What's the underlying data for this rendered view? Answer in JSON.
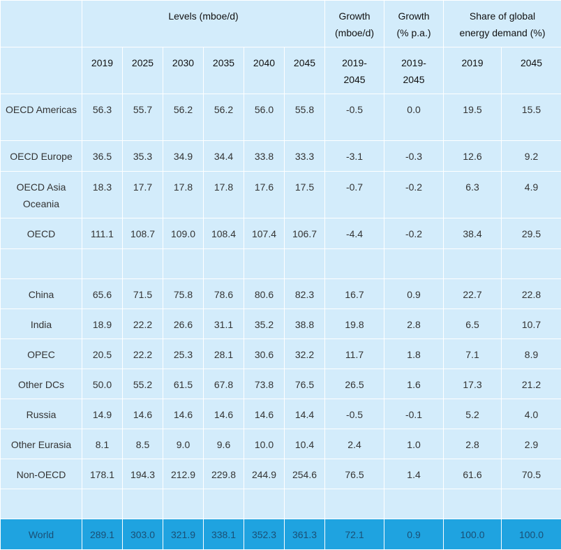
{
  "header": {
    "group_levels": "Levels (mboe/d)",
    "group_growth_abs": "Growth (mboe/d)",
    "group_growth_pct": "Growth (% p.a.)",
    "group_share": "Share of global energy demand (%)",
    "years": [
      "2019",
      "2025",
      "2030",
      "2035",
      "2040",
      "2045"
    ],
    "growth_abs_period": "2019-2045",
    "growth_pct_period": "2019-2045",
    "share_years": [
      "2019",
      "2045"
    ]
  },
  "rows": [
    {
      "region": "OECD Americas",
      "values": [
        "56.3",
        "55.7",
        "56.2",
        "56.2",
        "56.0",
        "55.8",
        "-0.5",
        "0.0",
        "19.5",
        "15.5"
      ]
    },
    {
      "region": "OECD Europe",
      "values": [
        "36.5",
        "35.3",
        "34.9",
        "34.4",
        "33.8",
        "33.3",
        "-3.1",
        "-0.3",
        "12.6",
        "9.2"
      ]
    },
    {
      "region": "OECD Asia Oceania",
      "values": [
        "18.3",
        "17.7",
        "17.8",
        "17.8",
        "17.6",
        "17.5",
        "-0.7",
        "-0.2",
        "6.3",
        "4.9"
      ]
    },
    {
      "region": "OECD",
      "values": [
        "111.1",
        "108.7",
        "109.0",
        "108.4",
        "107.4",
        "106.7",
        "-4.4",
        "-0.2",
        "38.4",
        "29.5"
      ]
    },
    {
      "region": "",
      "values": [
        "",
        "",
        "",
        "",
        "",
        "",
        "",
        "",
        "",
        ""
      ]
    },
    {
      "region": "China",
      "values": [
        "65.6",
        "71.5",
        "75.8",
        "78.6",
        "80.6",
        "82.3",
        "16.7",
        "0.9",
        "22.7",
        "22.8"
      ]
    },
    {
      "region": "India",
      "values": [
        "18.9",
        "22.2",
        "26.6",
        "31.1",
        "35.2",
        "38.8",
        "19.8",
        "2.8",
        "6.5",
        "10.7"
      ]
    },
    {
      "region": "OPEC",
      "values": [
        "20.5",
        "22.2",
        "25.3",
        "28.1",
        "30.6",
        "32.2",
        "11.7",
        "1.8",
        "7.1",
        "8.9"
      ]
    },
    {
      "region": "Other DCs",
      "values": [
        "50.0",
        "55.2",
        "61.5",
        "67.8",
        "73.8",
        "76.5",
        "26.5",
        "1.6",
        "17.3",
        "21.2"
      ]
    },
    {
      "region": "Russia",
      "values": [
        "14.9",
        "14.6",
        "14.6",
        "14.6",
        "14.6",
        "14.4",
        "-0.5",
        "-0.1",
        "5.2",
        "4.0"
      ]
    },
    {
      "region": "Other Eurasia",
      "values": [
        "8.1",
        "8.5",
        "9.0",
        "9.6",
        "10.0",
        "10.4",
        "2.4",
        "1.0",
        "2.8",
        "2.9"
      ]
    },
    {
      "region": "Non-OECD",
      "values": [
        "178.1",
        "194.3",
        "212.9",
        "229.8",
        "244.9",
        "254.6",
        "76.5",
        "1.4",
        "61.6",
        "70.5"
      ]
    },
    {
      "region": "",
      "values": [
        "",
        "",
        "",
        "",
        "",
        "",
        "",
        "",
        "",
        ""
      ]
    }
  ],
  "world": {
    "region": "World",
    "values": [
      "289.1",
      "303.0",
      "321.9",
      "338.1",
      "352.3",
      "361.3",
      "72.1",
      "0.9",
      "100.0",
      "100.0"
    ]
  }
}
